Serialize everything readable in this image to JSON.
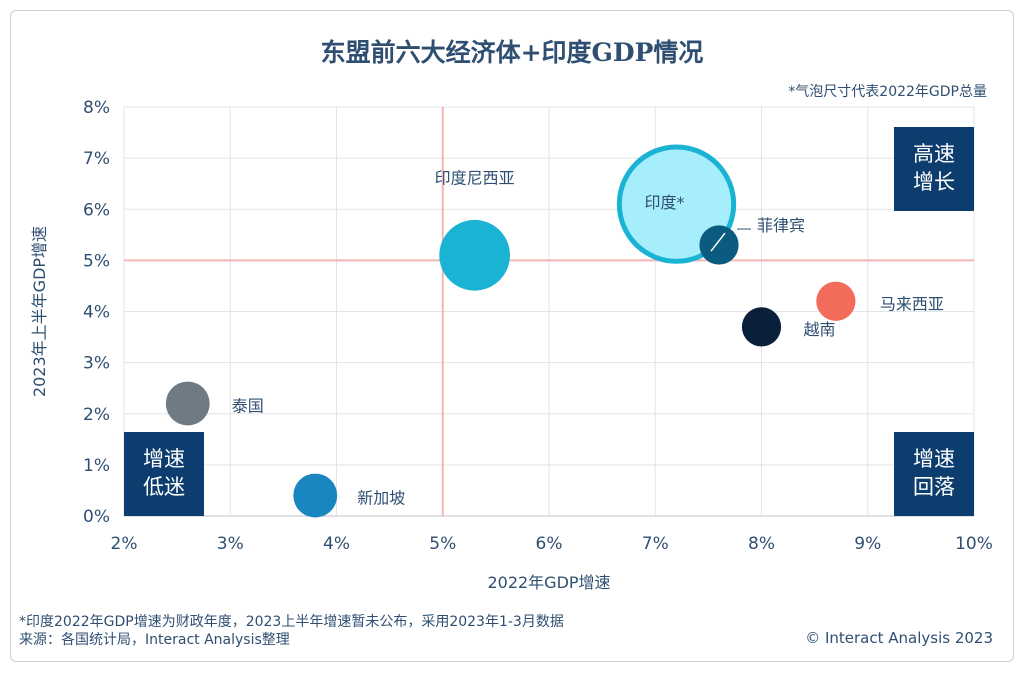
{
  "title": "东盟前六大经济体+印度GDP情况",
  "size_note": "*气泡尺寸代表2022年GDP总量",
  "footnote_lines": [
    "*印度2022年GDP增速为财政年度，2023上半年增速暂未公布，采用2023年1-3月数据",
    "来源：各国统计局，Interact Analysis整理"
  ],
  "copyright": "© Interact Analysis 2023",
  "chart_data": {
    "type": "scatter",
    "variant": "bubble",
    "xlabel": "2022年GDP增速",
    "ylabel": "2023年上半年GDP增速",
    "xlim": [
      2,
      10
    ],
    "ylim": [
      0,
      8
    ],
    "x_ticks": [
      "2%",
      "3%",
      "4%",
      "5%",
      "6%",
      "7%",
      "8%",
      "9%",
      "10%"
    ],
    "y_ticks": [
      "0%",
      "1%",
      "2%",
      "3%",
      "4%",
      "5%",
      "6%",
      "7%",
      "8%"
    ],
    "grid": true,
    "reference_lines": {
      "x": 5,
      "y": 5,
      "color": "#f4b6b0"
    },
    "quadrant_labels": [
      {
        "lines": [
          "高速",
          "增长"
        ],
        "position": "top-right"
      },
      {
        "lines": [
          "增速",
          "低迷"
        ],
        "position": "bottom-left"
      },
      {
        "lines": [
          "增速",
          "回落"
        ],
        "position": "bottom-right"
      }
    ],
    "series": [
      {
        "label": "印度*",
        "x": 7.2,
        "y": 6.1,
        "size": 3.4,
        "color": "#a6eefc",
        "outline": "#1ab3d3"
      },
      {
        "label": "印度尼西亚",
        "x": 5.3,
        "y": 5.1,
        "size": 1.3,
        "color": "#1ab3d3"
      },
      {
        "label": "菲律宾",
        "x": 7.6,
        "y": 5.3,
        "size": 0.4,
        "color": "#0b5a80"
      },
      {
        "label": "马来西亚",
        "x": 8.7,
        "y": 4.2,
        "size": 0.4,
        "color": "#f26b5b"
      },
      {
        "label": "越南",
        "x": 8.0,
        "y": 3.7,
        "size": 0.4,
        "color": "#0a1f3c"
      },
      {
        "label": "泰国",
        "x": 2.6,
        "y": 2.2,
        "size": 0.5,
        "color": "#6f7a82"
      },
      {
        "label": "新加坡",
        "x": 3.8,
        "y": 0.4,
        "size": 0.5,
        "color": "#1a86bf"
      }
    ]
  }
}
